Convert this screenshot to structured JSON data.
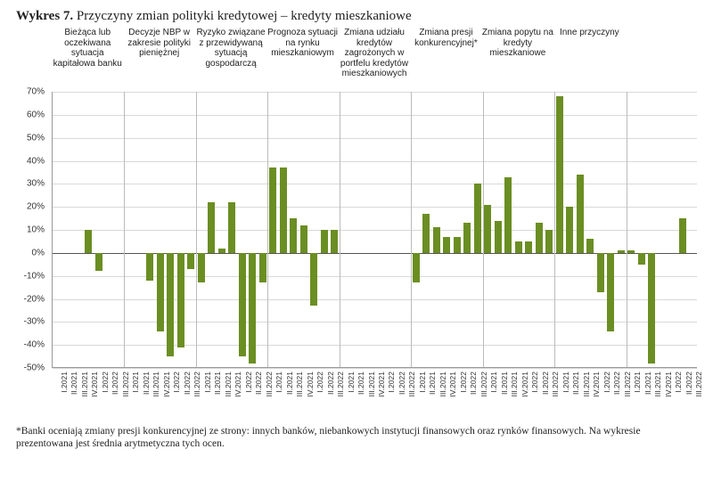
{
  "title_prefix": "Wykres 7.",
  "title_rest": " Przyczyny zmian polityki kredytowej – kredyty mieszkaniowe",
  "footnote": "*Banki oceniają zmiany presji konkurencyjnej ze strony: innych banków, niebankowych instytucji finansowych oraz rynków finansowych. Na wykresie prezentowana jest średnia arytmetyczna tych ocen.",
  "chart": {
    "type": "bar",
    "y": {
      "min": -50,
      "max": 70,
      "step": 10,
      "suffix": "%",
      "label_fontsize": 10
    },
    "colors": {
      "bar": "#6b8e23",
      "grid": "#d9d9d9",
      "zero_line": "#555555",
      "group_sep": "#bbbbbb",
      "background": "#ffffff"
    },
    "bar_width_ratio": 0.7,
    "periods": [
      "I.2021",
      "II.2021",
      "III.2021",
      "IV.2021",
      "I.2022",
      "II.2022",
      "III.2022"
    ],
    "groups": [
      {
        "label": "Bieżąca lub oczekiwana sytuacja kapitałowa banku",
        "values": [
          0,
          0,
          0,
          10,
          -8,
          0,
          0
        ]
      },
      {
        "label": "Decyzje NBP w zakresie polityki pieniężnej",
        "values": [
          0,
          0,
          -12,
          -34,
          -45,
          -41,
          -7
        ]
      },
      {
        "label": "Ryzyko związane z przewidywaną sytuacją gospodarczą",
        "values": [
          -13,
          22,
          2,
          22,
          -45,
          -48,
          -13
        ]
      },
      {
        "label": "Prognoza sytuacji na rynku mieszkaniowym",
        "values": [
          37,
          37,
          15,
          12,
          -23,
          10,
          10
        ]
      },
      {
        "label": "Zmiana udziału kredytów zagrożonych w portfelu kredytów mieszkaniowych",
        "values": [
          0,
          0,
          0,
          0,
          0,
          0,
          0
        ]
      },
      {
        "label": "Zmiana presji konkurencyjnej*",
        "values": [
          -13,
          17,
          11,
          7,
          7,
          13,
          30
        ]
      },
      {
        "label": "Zmiana popytu na kredyty mieszkaniowe",
        "values": [
          21,
          14,
          33,
          5,
          5,
          13,
          10
        ]
      },
      {
        "label": "Inne przyczyny",
        "values": [
          68,
          20,
          34,
          6,
          -17,
          -34,
          1
        ]
      },
      {
        "label": "",
        "values": [
          1,
          -5,
          -48,
          0,
          0,
          15,
          0
        ]
      }
    ]
  }
}
